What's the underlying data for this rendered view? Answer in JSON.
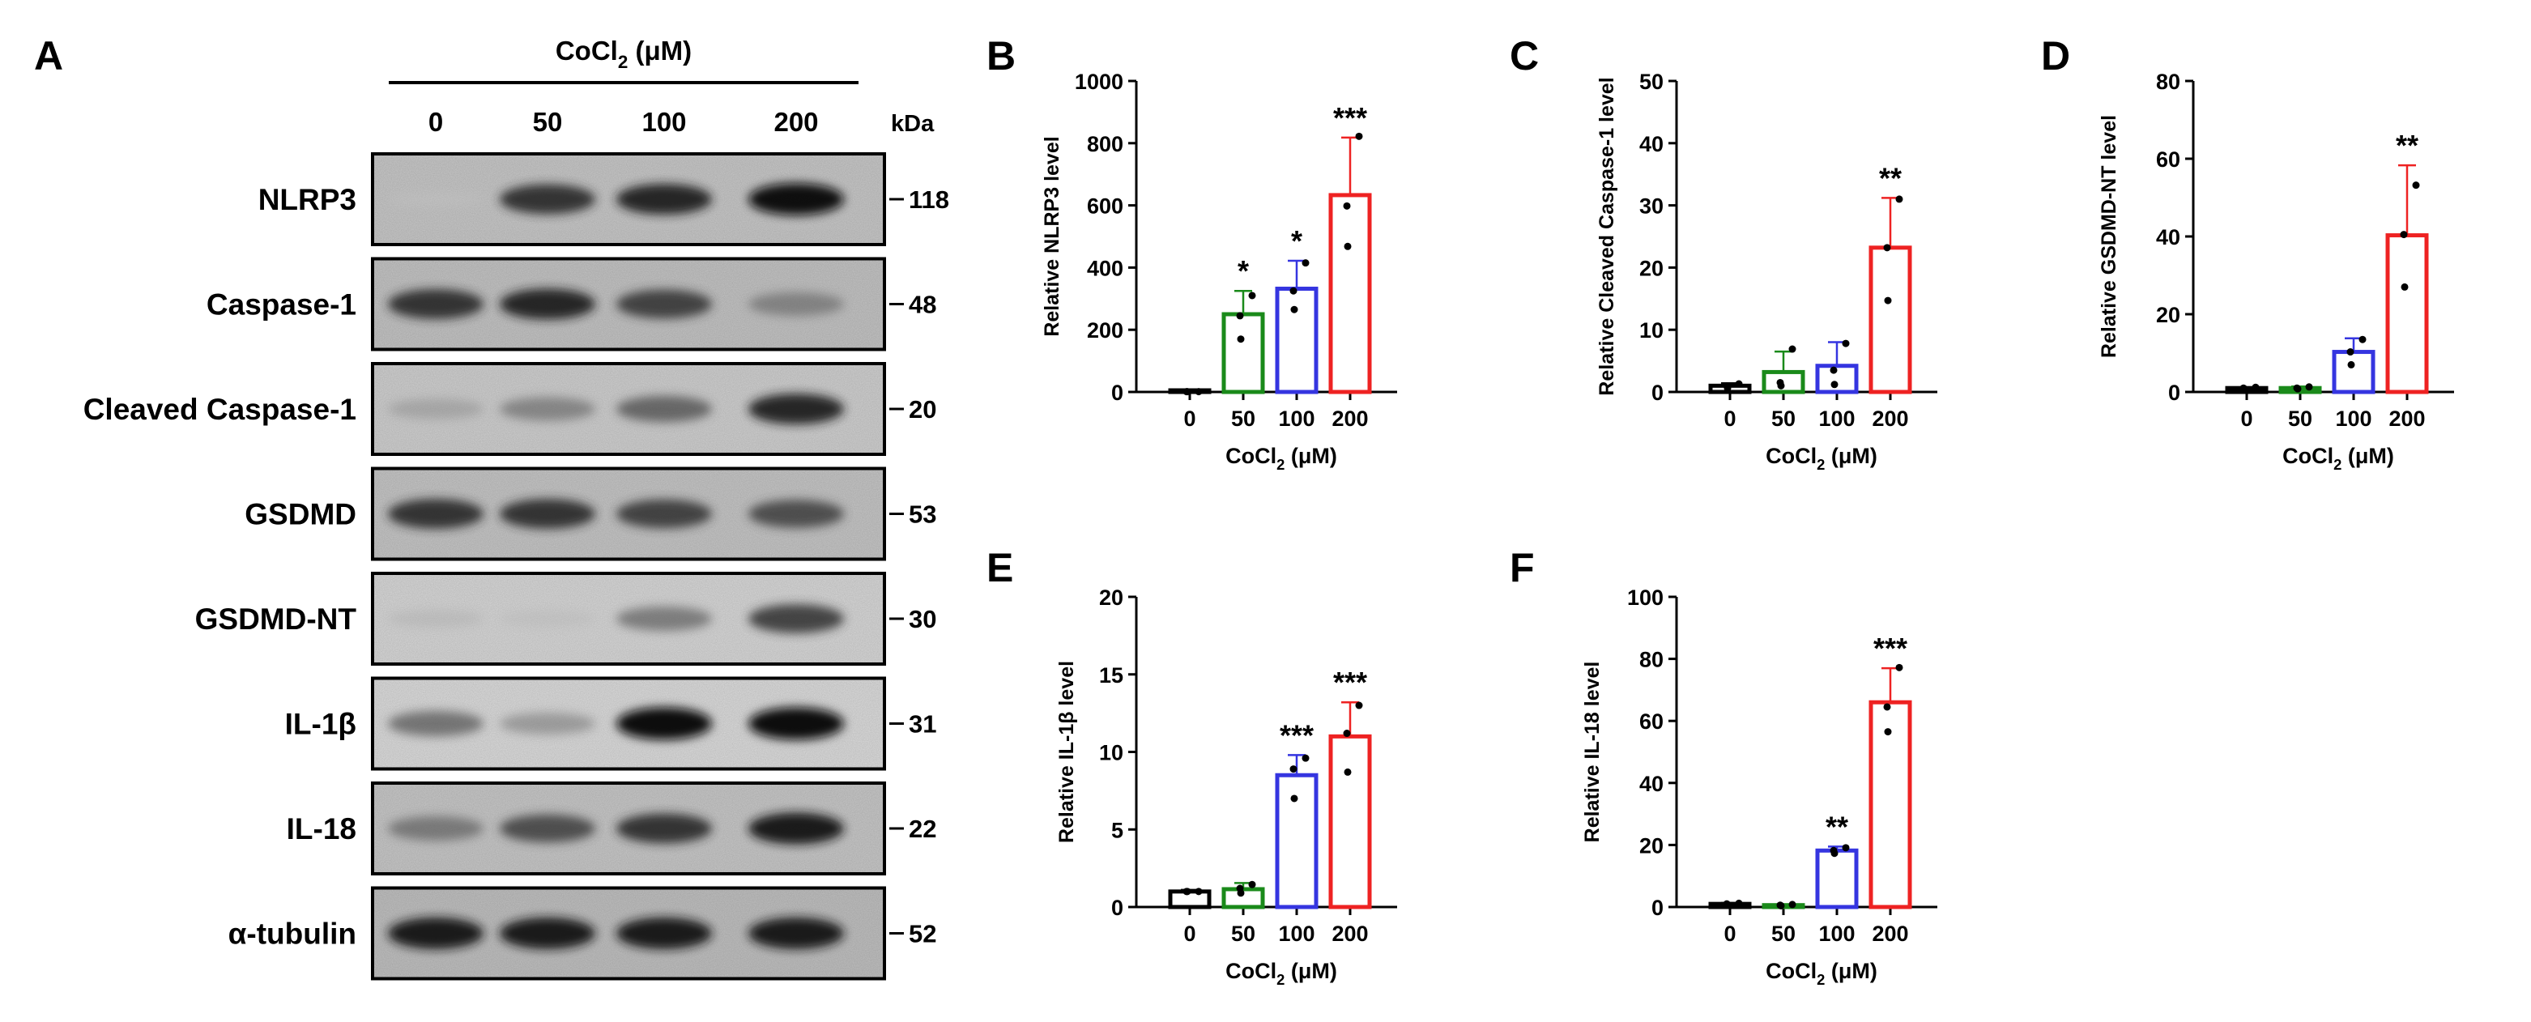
{
  "figure": {
    "panel_a": {
      "letter": "A",
      "treatment_label": "CoCl",
      "treatment_sub": "2",
      "treatment_unit": " (μM)",
      "doses": [
        "0",
        "50",
        "100",
        "200"
      ],
      "kda_label": "kDa",
      "blots": [
        {
          "name": "NLRP3",
          "kda": "118",
          "intensities": [
            0.03,
            0.85,
            0.9,
            0.98
          ],
          "tone": "#c8c8c8"
        },
        {
          "name": "Caspase-1",
          "kda": "48",
          "intensities": [
            0.85,
            0.9,
            0.8,
            0.5
          ],
          "tone": "#c4c4c4"
        },
        {
          "name": "Cleaved Caspase-1",
          "kda": "20",
          "intensities": [
            0.3,
            0.5,
            0.65,
            0.9
          ],
          "tone": "#d0d0d0"
        },
        {
          "name": "GSDMD",
          "kda": "53",
          "intensities": [
            0.85,
            0.85,
            0.8,
            0.75
          ],
          "tone": "#c6c6c6"
        },
        {
          "name": "GSDMD-NT",
          "kda": "30",
          "intensities": [
            0.15,
            0.1,
            0.55,
            0.8
          ],
          "tone": "#d8d8d8"
        },
        {
          "name": "IL-1β",
          "kda": "31",
          "intensities": [
            0.6,
            0.4,
            1.0,
            1.0
          ],
          "tone": "#dcdcdc"
        },
        {
          "name": "IL-18",
          "kda": "22",
          "intensities": [
            0.55,
            0.75,
            0.85,
            0.95
          ],
          "tone": "#c8c8c8"
        },
        {
          "name": "α-tubulin",
          "kda": "52",
          "intensities": [
            0.95,
            0.95,
            0.95,
            0.95
          ],
          "tone": "#c0c0c0"
        }
      ]
    },
    "colors": {
      "0": "#000000",
      "50": "#1a8a1a",
      "100": "#3535e0",
      "200": "#ee2222"
    }
  },
  "chart_data": [
    {
      "panel": "B",
      "type": "bar",
      "categories": [
        "0",
        "50",
        "100",
        "200"
      ],
      "values": [
        1,
        250,
        332,
        633
      ],
      "errors": [
        0,
        75,
        90,
        185
      ],
      "points": [
        [
          1,
          1,
          1
        ],
        [
          170,
          245,
          310
        ],
        [
          265,
          325,
          415
        ],
        [
          468,
          598,
          822
        ]
      ],
      "significance": [
        "",
        "*",
        "*",
        "***"
      ],
      "xlabel": "CoCl",
      "xlabel_sub": "2",
      "xlabel_unit": " (μM)",
      "ylabel": "Relative NLRP3 level",
      "ylim": [
        0,
        1000
      ],
      "yticks": [
        "0",
        "200",
        "400",
        "600",
        "800",
        "1000"
      ]
    },
    {
      "panel": "C",
      "type": "bar",
      "categories": [
        "0",
        "50",
        "100",
        "200"
      ],
      "values": [
        1,
        3.2,
        4.2,
        23.2
      ],
      "errors": [
        0.4,
        3.3,
        3.8,
        8
      ],
      "points": [
        [
          0.6,
          1,
          1.3
        ],
        [
          1,
          1.5,
          6.9
        ],
        [
          1.2,
          3.5,
          7.8
        ],
        [
          14.7,
          23.2,
          31.0
        ]
      ],
      "significance": [
        "",
        "",
        "",
        "**"
      ],
      "xlabel": "CoCl",
      "xlabel_sub": "2",
      "xlabel_unit": " (μM)",
      "ylabel": "Relative Cleaved Caspase-1 level",
      "ylim": [
        0,
        50
      ],
      "yticks": [
        "0",
        "10",
        "20",
        "30",
        "40",
        "50"
      ]
    },
    {
      "panel": "D",
      "type": "bar",
      "categories": [
        "0",
        "50",
        "100",
        "200"
      ],
      "values": [
        1,
        1,
        10.3,
        40.3
      ],
      "errors": [
        0.2,
        0.4,
        3.5,
        18
      ],
      "points": [
        [
          0.8,
          1,
          1.2
        ],
        [
          0.8,
          1,
          1.3
        ],
        [
          7,
          10.3,
          13.5
        ],
        [
          27,
          40.5,
          53.2
        ]
      ],
      "significance": [
        "",
        "",
        "",
        "**"
      ],
      "xlabel": "CoCl",
      "xlabel_sub": "2",
      "xlabel_unit": " (μM)",
      "ylabel": "Relative GSDMD-NT level",
      "ylim": [
        0,
        80
      ],
      "yticks": [
        "0",
        "20",
        "40",
        "60",
        "80"
      ]
    },
    {
      "panel": "E",
      "type": "bar",
      "categories": [
        "0",
        "50",
        "100",
        "200"
      ],
      "values": [
        1,
        1.15,
        8.5,
        11
      ],
      "errors": [
        0.1,
        0.4,
        1.3,
        2.2
      ],
      "points": [
        [
          1,
          1,
          1
        ],
        [
          0.9,
          1.2,
          1.45
        ],
        [
          7,
          8.9,
          9.6
        ],
        [
          8.7,
          11.2,
          13
        ]
      ],
      "significance": [
        "",
        "",
        "***",
        "***"
      ],
      "xlabel": "CoCl",
      "xlabel_sub": "2",
      "xlabel_unit": " (μM)",
      "ylabel": "Relative IL-1β level",
      "ylim": [
        0,
        20
      ],
      "yticks": [
        "0",
        "5",
        "10",
        "15",
        "20"
      ]
    },
    {
      "panel": "F",
      "type": "bar",
      "categories": [
        "0",
        "50",
        "100",
        "200"
      ],
      "values": [
        1,
        0.6,
        18.2,
        66
      ],
      "errors": [
        0.3,
        0.2,
        1.3,
        11
      ],
      "points": [
        [
          0.8,
          1,
          1.2
        ],
        [
          0.4,
          0.6,
          0.8
        ],
        [
          17.3,
          18.2,
          19.1
        ],
        [
          56.5,
          64.5,
          77.2
        ]
      ],
      "significance": [
        "",
        "",
        "**",
        "***"
      ],
      "xlabel": "CoCl",
      "xlabel_sub": "2",
      "xlabel_unit": " (μM)",
      "ylabel": "Relative IL-18 level",
      "ylim": [
        0,
        100
      ],
      "yticks": [
        "0",
        "20",
        "40",
        "60",
        "80",
        "100"
      ]
    }
  ]
}
